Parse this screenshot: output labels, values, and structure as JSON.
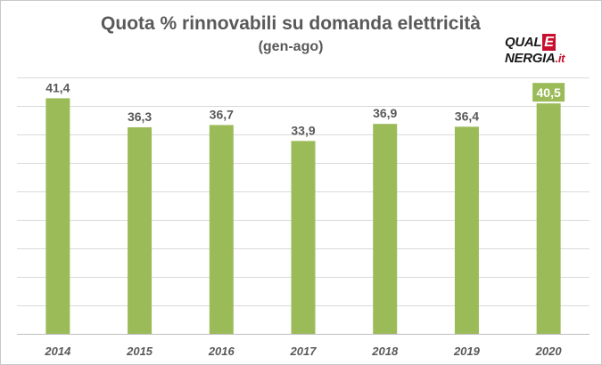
{
  "title": "Quota % rinnovabili su domanda elettricità",
  "subtitle": "(gen-ago)",
  "logo": {
    "part1": "QUAL",
    "part2": "E",
    "part3": "NERGIA",
    "part4": ".it"
  },
  "colors": {
    "bar": "#9bbb59",
    "highlight_label_bg": "#9bbb59",
    "grid": "#d9d9d9",
    "text": "#595959"
  },
  "chart_data": {
    "type": "bar",
    "title": "Quota % rinnovabili su domanda elettricità",
    "subtitle": "(gen-ago)",
    "categories": [
      "2014",
      "2015",
      "2016",
      "2017",
      "2018",
      "2019",
      "2020"
    ],
    "values": [
      41.4,
      36.3,
      36.7,
      33.9,
      36.9,
      36.4,
      40.5
    ],
    "value_labels": [
      "41,4",
      "36,3",
      "36,7",
      "33,9",
      "36,9",
      "36,4",
      "40,5"
    ],
    "highlighted": "2020",
    "ylim": [
      0,
      46
    ],
    "gridlines": [
      0,
      5,
      10,
      15,
      20,
      25,
      30,
      35,
      40,
      45
    ],
    "grid": true,
    "y_tick_labels_shown": false,
    "legend": "none"
  }
}
